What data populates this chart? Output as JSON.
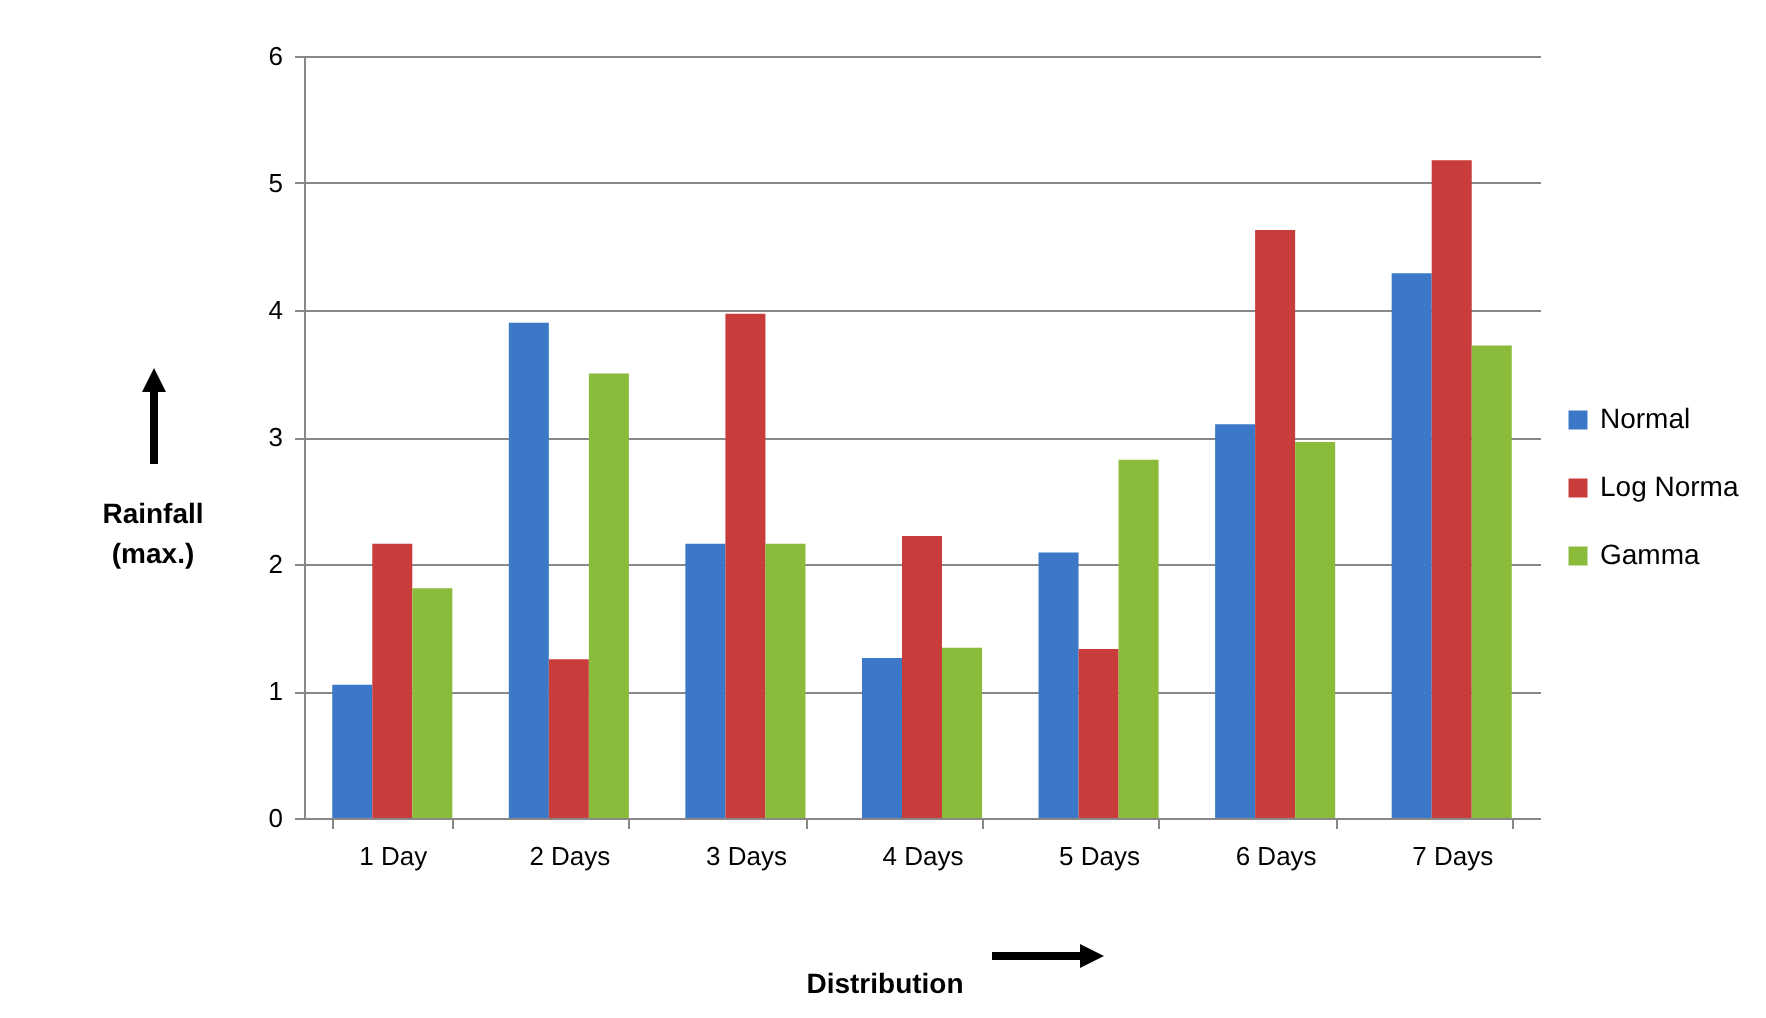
{
  "chart_data": {
    "type": "bar",
    "xlabel": "Distribution",
    "ylabel": "Rainfall\n(max.)",
    "categories": [
      "1 Day",
      "2 Days",
      "3 Days",
      "4 Days",
      "5 Days",
      "6 Days",
      "7 Days"
    ],
    "series": [
      {
        "name": "Normal",
        "color": "#3b78c8",
        "values": [
          1.05,
          3.9,
          2.16,
          1.26,
          2.09,
          3.1,
          4.29
        ]
      },
      {
        "name": "Log Norma",
        "color": "#c83c3c",
        "values": [
          2.16,
          1.25,
          3.97,
          2.22,
          1.33,
          4.63,
          5.18
        ]
      },
      {
        "name": "Gamma",
        "color": "#8bbb3a",
        "values": [
          1.81,
          3.5,
          2.16,
          1.34,
          2.82,
          2.96,
          3.72
        ]
      }
    ],
    "ylim": [
      0,
      6
    ],
    "yticks": [
      0,
      1,
      2,
      3,
      4,
      5,
      6
    ],
    "grid": "y",
    "legend": "right"
  }
}
